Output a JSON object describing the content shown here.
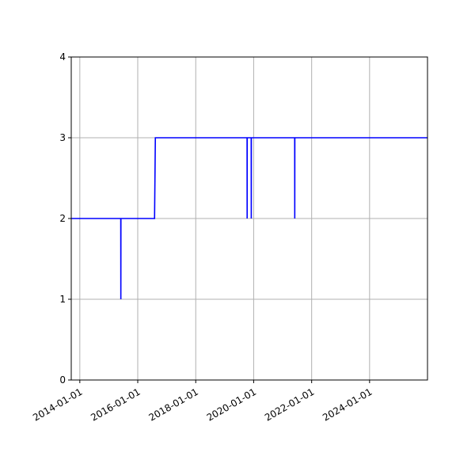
{
  "chart_data": {
    "type": "line",
    "title": "",
    "xlabel": "",
    "ylabel": "",
    "x_axis_type": "date",
    "xlim": [
      "2013-09-15",
      "2025-12-31"
    ],
    "ylim": [
      0,
      4
    ],
    "grid": true,
    "legend": "none",
    "x_ticks": [
      "2014-01-01",
      "2016-01-01",
      "2018-01-01",
      "2020-01-01",
      "2022-01-01",
      "2024-01-01"
    ],
    "y_ticks": [
      0,
      1,
      2,
      3,
      4
    ],
    "series": [
      {
        "name": "",
        "color": "#0000ff",
        "points": [
          {
            "x": "2013-09-15",
            "y": 2
          },
          {
            "x": "2015-06-01",
            "y": 2
          },
          {
            "x": "2015-06-02",
            "y": 1
          },
          {
            "x": "2015-06-03",
            "y": 2
          },
          {
            "x": "2016-07-31",
            "y": 2
          },
          {
            "x": "2016-08-10",
            "y": 3
          },
          {
            "x": "2019-10-10",
            "y": 3
          },
          {
            "x": "2019-10-11",
            "y": 2
          },
          {
            "x": "2019-10-12",
            "y": 3
          },
          {
            "x": "2019-12-01",
            "y": 3
          },
          {
            "x": "2019-12-02",
            "y": 2
          },
          {
            "x": "2019-12-03",
            "y": 3
          },
          {
            "x": "2021-06-01",
            "y": 3
          },
          {
            "x": "2021-06-02",
            "y": 2
          },
          {
            "x": "2021-06-03",
            "y": 3
          },
          {
            "x": "2025-12-31",
            "y": 3
          }
        ]
      }
    ]
  },
  "colors": {
    "line": "#0000ff",
    "grid": "#b0b0b0",
    "axis": "#000000",
    "background": "#ffffff"
  }
}
